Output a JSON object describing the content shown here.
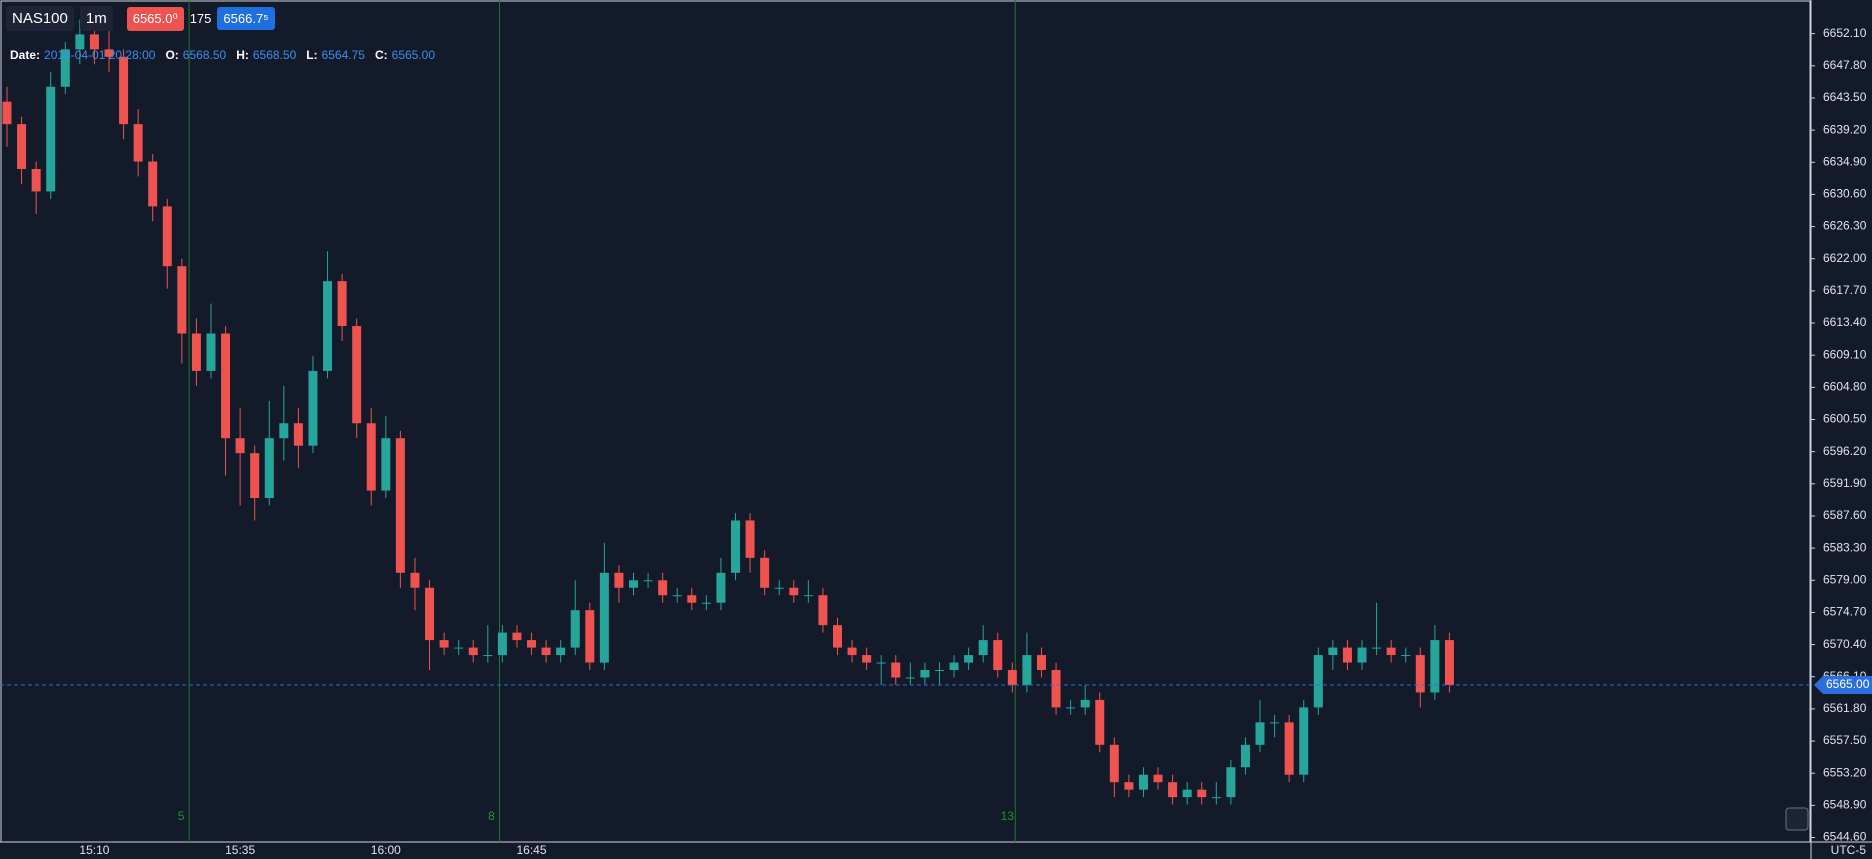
{
  "header": {
    "symbol": "NAS100",
    "interval": "1m",
    "sell": "6565.0⁰",
    "spread": "175",
    "buy": "6566.7⁵"
  },
  "legend": {
    "date_label": "Date:",
    "date": "2018-04-01 20:28:00",
    "open_label": "O:",
    "open": "6568.50",
    "high_label": "H:",
    "high": "6568.50",
    "low_label": "L:",
    "low": "6564.75",
    "close_label": "C:",
    "close": "6565.00"
  },
  "chart_data": {
    "type": "candlestick",
    "categories": [
      null,
      null,
      null,
      null,
      null,
      null,
      "15:10",
      null,
      null,
      null,
      null,
      null,
      null,
      null,
      null,
      null,
      "15:35",
      null,
      null,
      null,
      null,
      null,
      null,
      null,
      null,
      null,
      "16:00",
      null,
      null,
      null,
      null,
      null,
      null,
      null,
      null,
      null,
      "16:45",
      null,
      null,
      null,
      null,
      null,
      null,
      null,
      null,
      null,
      null,
      null,
      null,
      null,
      null,
      null,
      null,
      null,
      null,
      null,
      null,
      null,
      null,
      null,
      null,
      null,
      null,
      null,
      null,
      null,
      null,
      null,
      null,
      null,
      null,
      null,
      null,
      null,
      null,
      null,
      null,
      null,
      null,
      null,
      null,
      null,
      null,
      null,
      null,
      null,
      null,
      null,
      null,
      null,
      null,
      null,
      null,
      null,
      null,
      null,
      null,
      null,
      null,
      null
    ],
    "open": [
      6643,
      6640,
      6634,
      6631,
      6645,
      6650,
      6652,
      6650,
      6649,
      6640,
      6635,
      6629,
      6621,
      6612,
      6607,
      6612,
      6598,
      6596,
      6590,
      6598,
      6600,
      6597,
      6607,
      6619,
      6613,
      6600,
      6591,
      6598,
      6580,
      6578,
      6571,
      6570,
      6570,
      6569,
      6569,
      6572,
      6571,
      6570,
      6569,
      6570,
      6575,
      6568,
      6580,
      6578,
      6579,
      6579,
      6577,
      6577,
      6576,
      6576,
      6580,
      6587,
      6582,
      6578,
      6578,
      6577,
      6577,
      6573,
      6570,
      6569,
      6568,
      6568,
      6566,
      6566,
      6567,
      6567,
      6568,
      6569,
      6571,
      6567,
      6565,
      6569,
      6567,
      6562,
      6562,
      6563,
      6557,
      6552,
      6551,
      6553,
      6552,
      6550,
      6551,
      6550,
      6550,
      6554,
      6557,
      6560,
      6560,
      6553,
      6562,
      6569,
      6570,
      6568,
      6570,
      6570,
      6569,
      6569,
      6564,
      6571
    ],
    "high": [
      6645,
      6641,
      6635,
      6647,
      6651,
      6654,
      6653,
      6655,
      6650,
      6642,
      6636,
      6630,
      6622,
      6614,
      6616,
      6613,
      6602,
      6597,
      6603,
      6605,
      6602,
      6609,
      6623,
      6620,
      6614,
      6602,
      6601,
      6599,
      6582,
      6579,
      6572,
      6571,
      6571,
      6573,
      6573,
      6573,
      6572,
      6571,
      6571,
      6579,
      6576,
      6584,
      6581,
      6580,
      6580,
      6580,
      6578,
      6578,
      6577,
      6582,
      6588,
      6588,
      6583,
      6579,
      6579,
      6579,
      6578,
      6574,
      6571,
      6570,
      6569,
      6569,
      6568,
      6568,
      6568,
      6569,
      6570,
      6573,
      6572,
      6568,
      6572,
      6570,
      6568,
      6563,
      6565,
      6564,
      6558,
      6553,
      6554,
      6554,
      6553,
      6552,
      6552,
      6552,
      6555,
      6558,
      6563,
      6561,
      6561,
      6563,
      6570,
      6571,
      6571,
      6571,
      6576,
      6571,
      6570,
      6570,
      6573,
      6572
    ],
    "low": [
      6637,
      6632,
      6628,
      6630,
      6644,
      6648,
      6648,
      6647,
      6638,
      6633,
      6627,
      6618,
      6608,
      6605,
      6606,
      6593,
      6589,
      6587,
      6589,
      6595,
      6594,
      6596,
      6606,
      6611,
      6598,
      6589,
      6590,
      6578,
      6575,
      6567,
      6569,
      6569,
      6568,
      6568,
      6568,
      6570,
      6569,
      6568,
      6568,
      6569,
      6567,
      6567,
      6576,
      6577,
      6578,
      6576,
      6576,
      6575,
      6575,
      6575,
      6579,
      6580,
      6577,
      6577,
      6576,
      6576,
      6572,
      6569,
      6568,
      6567,
      6565,
      6565,
      6565,
      6565,
      6565,
      6566,
      6567,
      6568,
      6566,
      6564,
      6564,
      6566,
      6561,
      6561,
      6561,
      6556,
      6550,
      6550,
      6550,
      6551,
      6549,
      6549,
      6549,
      6549,
      6549,
      6553,
      6556,
      6558,
      6552,
      6552,
      6561,
      6567,
      6567,
      6567,
      6569,
      6568,
      6568,
      6562,
      6563,
      6564
    ],
    "close": [
      6640,
      6634,
      6631,
      6645,
      6650,
      6652,
      6650,
      6649,
      6640,
      6635,
      6629,
      6621,
      6612,
      6607,
      6612,
      6598,
      6596,
      6590,
      6598,
      6600,
      6597,
      6607,
      6619,
      6613,
      6600,
      6591,
      6598,
      6580,
      6578,
      6571,
      6570,
      6570,
      6569,
      6569,
      6572,
      6571,
      6570,
      6569,
      6570,
      6575,
      6568,
      6580,
      6578,
      6579,
      6579,
      6577,
      6577,
      6576,
      6576,
      6580,
      6587,
      6582,
      6578,
      6578,
      6577,
      6577,
      6573,
      6570,
      6569,
      6568,
      6568,
      6566,
      6566,
      6567,
      6567,
      6568,
      6569,
      6571,
      6567,
      6565,
      6569,
      6567,
      6562,
      6562,
      6563,
      6557,
      6552,
      6551,
      6553,
      6552,
      6550,
      6551,
      6550,
      6550,
      6554,
      6557,
      6560,
      6560,
      6553,
      6562,
      6569,
      6570,
      6568,
      6570,
      6570,
      6569,
      6569,
      6564,
      6571,
      6565
    ],
    "ylim": [
      6544.0,
      6656.6
    ],
    "yticks": [
      {
        "value": 6652.1,
        "label": "6652.10"
      },
      {
        "value": 6647.8,
        "label": "6647.80"
      },
      {
        "value": 6643.5,
        "label": "6643.50"
      },
      {
        "value": 6639.2,
        "label": "6639.20"
      },
      {
        "value": 6634.9,
        "label": "6634.90"
      },
      {
        "value": 6630.6,
        "label": "6630.60"
      },
      {
        "value": 6626.3,
        "label": "6626.30"
      },
      {
        "value": 6622.0,
        "label": "6622.00"
      },
      {
        "value": 6617.7,
        "label": "6617.70"
      },
      {
        "value": 6613.4,
        "label": "6613.40"
      },
      {
        "value": 6609.1,
        "label": "6609.10"
      },
      {
        "value": 6604.8,
        "label": "6604.80"
      },
      {
        "value": 6600.5,
        "label": "6600.50"
      },
      {
        "value": 6596.2,
        "label": "6596.20"
      },
      {
        "value": 6591.9,
        "label": "6591.90"
      },
      {
        "value": 6587.6,
        "label": "6587.60"
      },
      {
        "value": 6583.3,
        "label": "6583.30"
      },
      {
        "value": 6579.0,
        "label": "6579.00"
      },
      {
        "value": 6574.7,
        "label": "6574.70"
      },
      {
        "value": 6570.4,
        "label": "6570.40"
      },
      {
        "value": 6566.1,
        "label": "6566.10"
      },
      {
        "value": 6561.8,
        "label": "6561.80"
      },
      {
        "value": 6557.5,
        "label": "6557.50"
      },
      {
        "value": 6553.2,
        "label": "6553.20"
      },
      {
        "value": 6548.9,
        "label": "6548.90"
      },
      {
        "value": 6544.6,
        "label": "6544.60"
      }
    ],
    "up_color": "#26a69a",
    "down_color": "#ef5350",
    "timezone": "UTC-5",
    "fib_labels": [
      "5",
      "8",
      "13"
    ]
  }
}
